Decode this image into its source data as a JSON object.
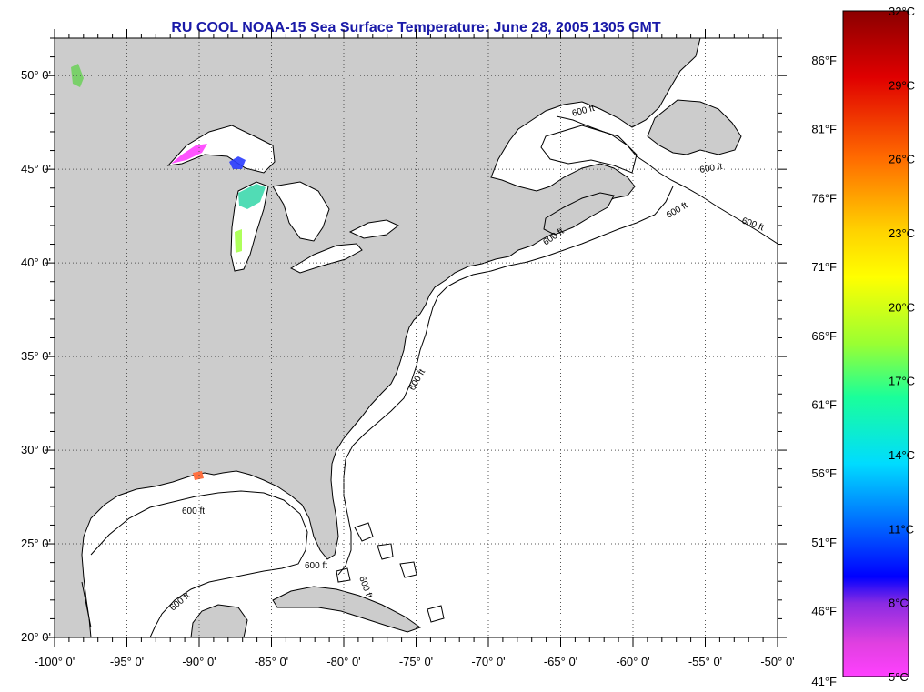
{
  "title": "RU COOL  NOAA-15  Sea Surface Temperature:  June 28, 2005 1305 GMT",
  "map": {
    "lon_range": [
      -100,
      -50
    ],
    "lat_range": [
      20,
      52
    ],
    "lat_ticks": [
      {
        "value": 50,
        "label": "50° 0'"
      },
      {
        "value": 45,
        "label": "45° 0'"
      },
      {
        "value": 40,
        "label": "40° 0'"
      },
      {
        "value": 35,
        "label": "35° 0'"
      },
      {
        "value": 30,
        "label": "30° 0'"
      },
      {
        "value": 25,
        "label": "25° 0'"
      },
      {
        "value": 20,
        "label": "20° 0'"
      }
    ],
    "lon_ticks": [
      {
        "value": -100,
        "label": "-100° 0'"
      },
      {
        "value": -95,
        "label": "-95° 0'"
      },
      {
        "value": -90,
        "label": "-90° 0'"
      },
      {
        "value": -85,
        "label": "-85° 0'"
      },
      {
        "value": -80,
        "label": "-80° 0'"
      },
      {
        "value": -75,
        "label": "-75° 0'"
      },
      {
        "value": -70,
        "label": "-70° 0'"
      },
      {
        "value": -65,
        "label": "-65° 0'"
      },
      {
        "value": -60,
        "label": "-60° 0'"
      },
      {
        "value": -55,
        "label": "-55° 0'"
      },
      {
        "value": -50,
        "label": "-50° 0'"
      }
    ],
    "contour_labels": [
      "600 ft",
      "600 ft",
      "600 ft",
      "600 ft",
      "600 ft",
      "600 ft",
      "600 ft",
      "600 ft",
      "600 ft",
      "600 ft"
    ],
    "colors": {
      "land": "#cccccc",
      "ocean": "#ffffff",
      "coast": "#000000",
      "grid": "#555555"
    }
  },
  "colorbar": {
    "celsius": [
      "32°C",
      "29°C",
      "26°C",
      "23°C",
      "20°C",
      "17°C",
      "14°C",
      "11°C",
      "8°C",
      "5°C"
    ],
    "fahrenheit": [
      "86°F",
      "81°F",
      "76°F",
      "71°F",
      "66°F",
      "61°F",
      "56°F",
      "51°F",
      "46°F",
      "41°F"
    ],
    "gradient": [
      "#8b0000",
      "#ff0000",
      "#ff8c00",
      "#ffff00",
      "#9aff32",
      "#00ffcc",
      "#00b4ff",
      "#0000ff",
      "#8a2be2",
      "#ff00ff"
    ]
  }
}
